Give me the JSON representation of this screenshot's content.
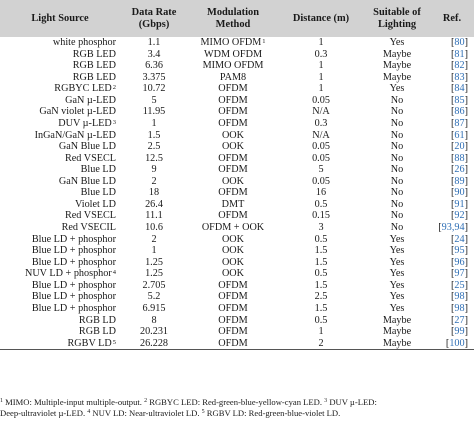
{
  "headers": [
    "Light Source",
    "Data Rate\n(Gbps)",
    "Modulation\nMethod",
    "Distance (m)",
    "Suitable of\nLighting",
    "Ref."
  ],
  "rows": [
    {
      "source": "white phosphor",
      "sup": "",
      "rate": "1.1",
      "method": "MIMO OFDM",
      "msup": "1",
      "dist": "1",
      "light": "Yes",
      "refs": [
        "80"
      ]
    },
    {
      "source": "RGB LED",
      "sup": "",
      "rate": "3.4",
      "method": "WDM OFDM",
      "msup": "",
      "dist": "0.3",
      "light": "Maybe",
      "refs": [
        "81"
      ]
    },
    {
      "source": "RGB LED",
      "sup": "",
      "rate": "6.36",
      "method": "MIMO OFDM",
      "msup": "",
      "dist": "1",
      "light": "Maybe",
      "refs": [
        "82"
      ]
    },
    {
      "source": "RGB LED",
      "sup": "",
      "rate": "3.375",
      "method": "PAM8",
      "msup": "",
      "dist": "1",
      "light": "Maybe",
      "refs": [
        "83"
      ]
    },
    {
      "source": "RGBYC LED",
      "sup": "2",
      "rate": "10.72",
      "method": "OFDM",
      "msup": "",
      "dist": "1",
      "light": "Yes",
      "refs": [
        "84"
      ]
    },
    {
      "source": "GaN µ-LED",
      "sup": "",
      "rate": "5",
      "method": "OFDM",
      "msup": "",
      "dist": "0.05",
      "light": "No",
      "refs": [
        "85"
      ]
    },
    {
      "source": "GaN violet µ-LED",
      "sup": "",
      "rate": "11.95",
      "method": "OFDM",
      "msup": "",
      "dist": "N/A",
      "light": "No",
      "refs": [
        "86"
      ]
    },
    {
      "source": "DUV µ-LED",
      "sup": "3",
      "rate": "1",
      "method": "OFDM",
      "msup": "",
      "dist": "0.3",
      "light": "No",
      "refs": [
        "87"
      ]
    },
    {
      "source": "InGaN/GaN µ-LED",
      "sup": "",
      "rate": "1.5",
      "method": "OOK",
      "msup": "",
      "dist": "N/A",
      "light": "No",
      "refs": [
        "61"
      ]
    },
    {
      "source": "GaN Blue LD",
      "sup": "",
      "rate": "2.5",
      "method": "OOK",
      "msup": "",
      "dist": "0.05",
      "light": "No",
      "refs": [
        "20"
      ]
    },
    {
      "source": "Red VSECL",
      "sup": "",
      "rate": "12.5",
      "method": "OFDM",
      "msup": "",
      "dist": "0.05",
      "light": "No",
      "refs": [
        "88"
      ]
    },
    {
      "source": "Blue LD",
      "sup": "",
      "rate": "9",
      "method": "OFDM",
      "msup": "",
      "dist": "5",
      "light": "No",
      "refs": [
        "26"
      ]
    },
    {
      "source": "GaN Blue LD",
      "sup": "",
      "rate": "2",
      "method": "OOK",
      "msup": "",
      "dist": "0.05",
      "light": "No",
      "refs": [
        "89"
      ]
    },
    {
      "source": "Blue LD",
      "sup": "",
      "rate": "18",
      "method": "OFDM",
      "msup": "",
      "dist": "16",
      "light": "No",
      "refs": [
        "90"
      ]
    },
    {
      "source": "Violet LD",
      "sup": "",
      "rate": "26.4",
      "method": "DMT",
      "msup": "",
      "dist": "0.5",
      "light": "No",
      "refs": [
        "91"
      ]
    },
    {
      "source": "Red VSECL",
      "sup": "",
      "rate": "11.1",
      "method": "OFDM",
      "msup": "",
      "dist": "0.15",
      "light": "No",
      "refs": [
        "92"
      ]
    },
    {
      "source": "Red VSECIL",
      "sup": "",
      "rate": "10.6",
      "method": "OFDM + OOK",
      "msup": "",
      "dist": "3",
      "light": "No",
      "refs": [
        "93",
        "94"
      ]
    },
    {
      "source": "Blue LD + phosphor",
      "sup": "",
      "rate": "2",
      "method": "OOK",
      "msup": "",
      "dist": "0.5",
      "light": "Yes",
      "refs": [
        "24"
      ]
    },
    {
      "source": "Blue LD + phosphor",
      "sup": "",
      "rate": "1",
      "method": "OOK",
      "msup": "",
      "dist": "1.5",
      "light": "Yes",
      "refs": [
        "95"
      ]
    },
    {
      "source": "Blue LD + phosphor",
      "sup": "",
      "rate": "1.25",
      "method": "OOK",
      "msup": "",
      "dist": "1.5",
      "light": "Yes",
      "refs": [
        "96"
      ]
    },
    {
      "source": "NUV LD + phosphor",
      "sup": "4",
      "rate": "1.25",
      "method": "OOK",
      "msup": "",
      "dist": "0.5",
      "light": "Yes",
      "refs": [
        "97"
      ]
    },
    {
      "source": "Blue LD + phosphor",
      "sup": "",
      "rate": "2.705",
      "method": "OFDM",
      "msup": "",
      "dist": "1.5",
      "light": "Yes",
      "refs": [
        "25"
      ]
    },
    {
      "source": "Blue LD + phosphor",
      "sup": "",
      "rate": "5.2",
      "method": "OFDM",
      "msup": "",
      "dist": "2.5",
      "light": "Yes",
      "refs": [
        "98"
      ]
    },
    {
      "source": "Blue LD + phosphor",
      "sup": "",
      "rate": "6.915",
      "method": "OFDM",
      "msup": "",
      "dist": "1.5",
      "light": "Yes",
      "refs": [
        "98"
      ]
    },
    {
      "source": "RGB LD",
      "sup": "",
      "rate": "8",
      "method": "OFDM",
      "msup": "",
      "dist": "0.5",
      "light": "Maybe",
      "refs": [
        "27"
      ]
    },
    {
      "source": "RGB LD",
      "sup": "",
      "rate": "20.231",
      "method": "OFDM",
      "msup": "",
      "dist": "1",
      "light": "Maybe",
      "refs": [
        "99"
      ]
    },
    {
      "source": "RGBV LD",
      "sup": "5",
      "rate": "26.228",
      "method": "OFDM",
      "msup": "",
      "dist": "2",
      "light": "Maybe",
      "refs": [
        "100"
      ]
    }
  ],
  "footnote_parts": [
    {
      "sup": "1",
      "text": " MIMO: Multiple-input multiple-output. "
    },
    {
      "sup": "2",
      "text": " RGBYC LED: Red-green-blue-yellow-cyan LED. "
    },
    {
      "sup": "3",
      "text": " DUV µ-LED:"
    }
  ],
  "footnote_line2": [
    {
      "sup": "",
      "text": "Deep-ultraviolet µ-LED. "
    },
    {
      "sup": "4",
      "text": " NUV LD: Near-ultraviolet LD. "
    },
    {
      "sup": "5",
      "text": " RGBV LD: Red-green-blue-violet LD."
    }
  ]
}
